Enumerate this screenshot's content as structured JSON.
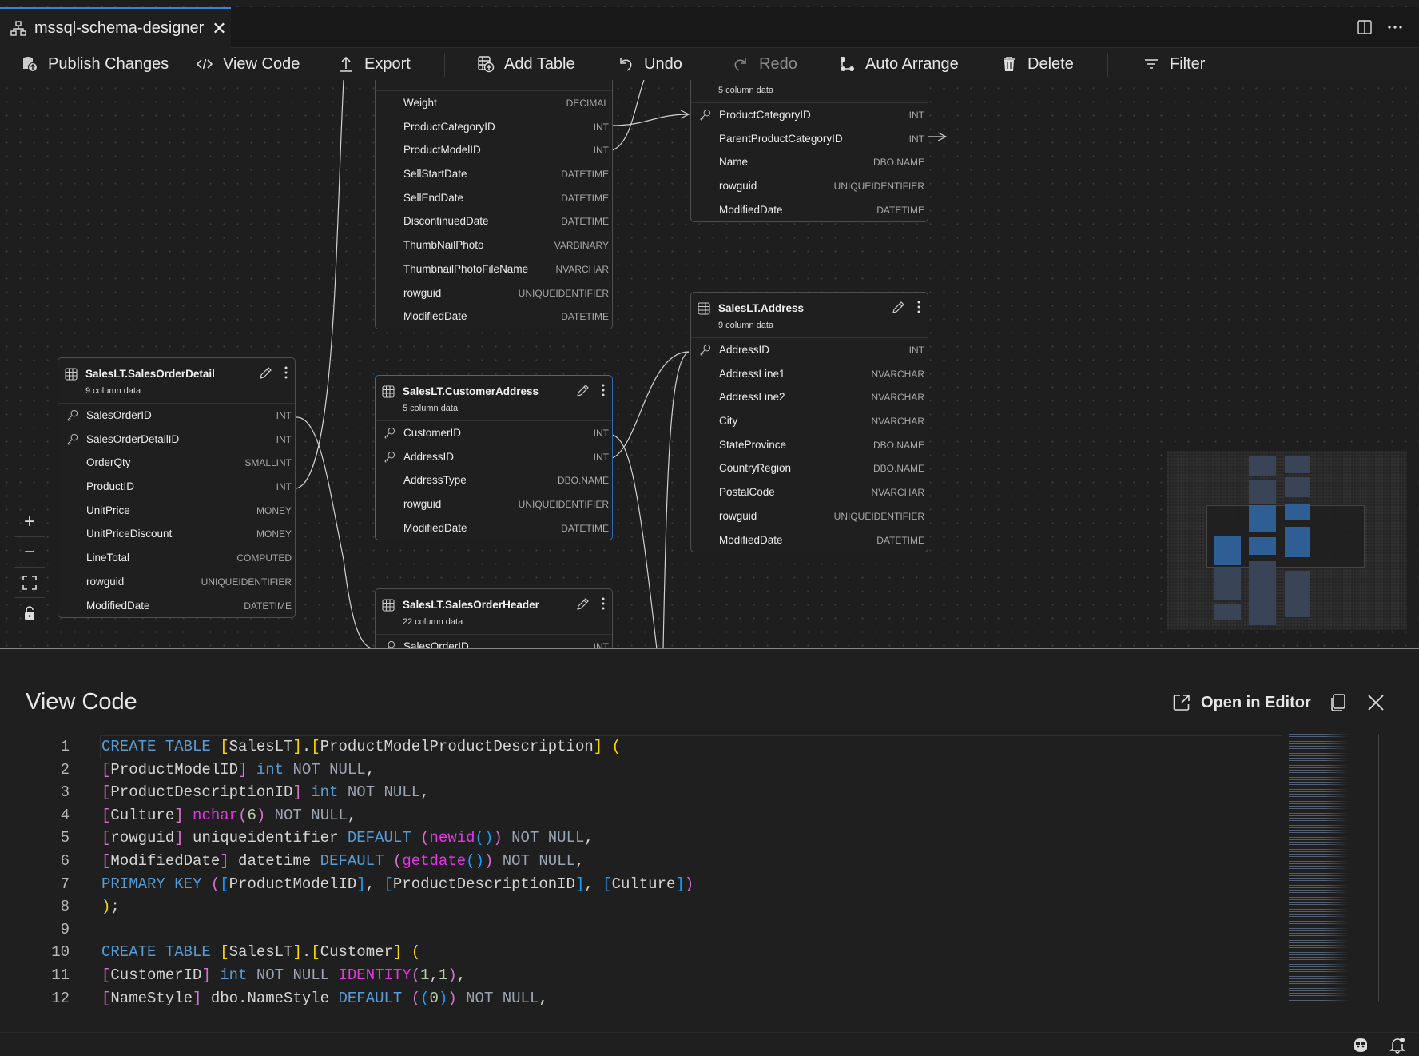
{
  "tab": {
    "title": "mssql-schema-designer",
    "icon": "schema-icon",
    "close": "✕"
  },
  "toolbar": {
    "publish": "Publish Changes",
    "view_code": "View Code",
    "export": "Export",
    "add_table": "Add Table",
    "undo": "Undo",
    "redo": "Redo",
    "auto_arrange": "Auto Arrange",
    "delete": "Delete",
    "filter": "Filter"
  },
  "tables": [
    {
      "title": "",
      "subtitle": "",
      "selected": false,
      "columns": [
        {
          "name": "Weight",
          "type": "DECIMAL"
        },
        {
          "name": "ProductCategoryID",
          "type": "INT"
        },
        {
          "name": "ProductModelID",
          "type": "INT"
        },
        {
          "name": "SellStartDate",
          "type": "DATETIME"
        },
        {
          "name": "SellEndDate",
          "type": "DATETIME"
        },
        {
          "name": "DiscontinuedDate",
          "type": "DATETIME"
        },
        {
          "name": "ThumbNailPhoto",
          "type": "VARBINARY"
        },
        {
          "name": "ThumbnailPhotoFileName",
          "type": "NVARCHAR"
        },
        {
          "name": "rowguid",
          "type": "UNIQUEIDENTIFIER"
        },
        {
          "name": "ModifiedDate",
          "type": "DATETIME"
        }
      ]
    },
    {
      "title": "",
      "subtitle": "5 column data",
      "selected": false,
      "columns": [
        {
          "name": "ProductCategoryID",
          "type": "INT",
          "key": true
        },
        {
          "name": "ParentProductCategoryID",
          "type": "INT"
        },
        {
          "name": "Name",
          "type": "DBO.NAME"
        },
        {
          "name": "rowguid",
          "type": "UNIQUEIDENTIFIER"
        },
        {
          "name": "ModifiedDate",
          "type": "DATETIME"
        }
      ]
    },
    {
      "title": "SalesLT.Address",
      "subtitle": "9 column data",
      "selected": false,
      "columns": [
        {
          "name": "AddressID",
          "type": "INT",
          "key": true
        },
        {
          "name": "AddressLine1",
          "type": "NVARCHAR"
        },
        {
          "name": "AddressLine2",
          "type": "NVARCHAR"
        },
        {
          "name": "City",
          "type": "NVARCHAR"
        },
        {
          "name": "StateProvince",
          "type": "DBO.NAME"
        },
        {
          "name": "CountryRegion",
          "type": "DBO.NAME"
        },
        {
          "name": "PostalCode",
          "type": "NVARCHAR"
        },
        {
          "name": "rowguid",
          "type": "UNIQUEIDENTIFIER"
        },
        {
          "name": "ModifiedDate",
          "type": "DATETIME"
        }
      ]
    },
    {
      "title": "SalesLT.SalesOrderDetail",
      "subtitle": "9 column data",
      "selected": false,
      "columns": [
        {
          "name": "SalesOrderID",
          "type": "INT",
          "key": true
        },
        {
          "name": "SalesOrderDetailID",
          "type": "INT",
          "key": true
        },
        {
          "name": "OrderQty",
          "type": "SMALLINT"
        },
        {
          "name": "ProductID",
          "type": "INT"
        },
        {
          "name": "UnitPrice",
          "type": "MONEY"
        },
        {
          "name": "UnitPriceDiscount",
          "type": "MONEY"
        },
        {
          "name": "LineTotal",
          "type": "COMPUTED"
        },
        {
          "name": "rowguid",
          "type": "UNIQUEIDENTIFIER"
        },
        {
          "name": "ModifiedDate",
          "type": "DATETIME"
        }
      ]
    },
    {
      "title": "SalesLT.CustomerAddress",
      "subtitle": "5 column data",
      "selected": true,
      "columns": [
        {
          "name": "CustomerID",
          "type": "INT",
          "key": true
        },
        {
          "name": "AddressID",
          "type": "INT",
          "key": true
        },
        {
          "name": "AddressType",
          "type": "DBO.NAME"
        },
        {
          "name": "rowguid",
          "type": "UNIQUEIDENTIFIER"
        },
        {
          "name": "ModifiedDate",
          "type": "DATETIME"
        }
      ]
    },
    {
      "title": "SalesLT.SalesOrderHeader",
      "subtitle": "22 column data",
      "selected": false,
      "columns": [
        {
          "name": "SalesOrderID",
          "type": "INT",
          "key": true
        }
      ]
    }
  ],
  "canvas_controls": {
    "zoom_in": "+",
    "zoom_out": "−"
  },
  "code_panel": {
    "title": "View Code",
    "open_in_editor": "Open in Editor",
    "lines": [
      [
        [
          "kw",
          "CREATE TABLE "
        ],
        [
          "b1",
          "["
        ],
        [
          "tx",
          "SalesLT"
        ],
        [
          "b1",
          "]"
        ],
        [
          "tx",
          "."
        ],
        [
          "b1",
          "["
        ],
        [
          "tx",
          "ProductModelProductDescription"
        ],
        [
          "b1",
          "]"
        ],
        [
          "tx",
          " "
        ],
        [
          "b1",
          "("
        ]
      ],
      [
        [
          "b2",
          "["
        ],
        [
          "tx",
          "ProductModelID"
        ],
        [
          "b2",
          "]"
        ],
        [
          "tx",
          " "
        ],
        [
          "kw",
          "int"
        ],
        [
          "nn",
          " NOT NULL"
        ],
        [
          "tx",
          ","
        ]
      ],
      [
        [
          "b2",
          "["
        ],
        [
          "tx",
          "ProductDescriptionID"
        ],
        [
          "b2",
          "]"
        ],
        [
          "tx",
          " "
        ],
        [
          "kw",
          "int"
        ],
        [
          "nn",
          " NOT NULL"
        ],
        [
          "tx",
          ","
        ]
      ],
      [
        [
          "b2",
          "["
        ],
        [
          "tx",
          "Culture"
        ],
        [
          "b2",
          "]"
        ],
        [
          "tx",
          " "
        ],
        [
          "fn",
          "nchar"
        ],
        [
          "b2",
          "("
        ],
        [
          "num",
          "6"
        ],
        [
          "b2",
          ")"
        ],
        [
          "nn",
          " NOT NULL"
        ],
        [
          "tx",
          ","
        ]
      ],
      [
        [
          "b2",
          "["
        ],
        [
          "tx",
          "rowguid"
        ],
        [
          "b2",
          "]"
        ],
        [
          "tx",
          " uniqueidentifier "
        ],
        [
          "kw",
          "DEFAULT"
        ],
        [
          "tx",
          " "
        ],
        [
          "b2",
          "("
        ],
        [
          "fn",
          "newid"
        ],
        [
          "b3",
          "()"
        ],
        [
          "b2",
          ")"
        ],
        [
          "nn",
          " NOT NULL"
        ],
        [
          "tx",
          ","
        ]
      ],
      [
        [
          "b2",
          "["
        ],
        [
          "tx",
          "ModifiedDate"
        ],
        [
          "b2",
          "]"
        ],
        [
          "tx",
          " datetime "
        ],
        [
          "kw",
          "DEFAULT"
        ],
        [
          "tx",
          " "
        ],
        [
          "b2",
          "("
        ],
        [
          "fn",
          "getdate"
        ],
        [
          "b3",
          "()"
        ],
        [
          "b2",
          ")"
        ],
        [
          "nn",
          " NOT NULL"
        ],
        [
          "tx",
          ","
        ]
      ],
      [
        [
          "kw",
          "PRIMARY KEY"
        ],
        [
          "tx",
          " "
        ],
        [
          "b2",
          "("
        ],
        [
          "b3",
          "["
        ],
        [
          "tx",
          "ProductModelID"
        ],
        [
          "b3",
          "]"
        ],
        [
          "tx",
          ", "
        ],
        [
          "b3",
          "["
        ],
        [
          "tx",
          "ProductDescriptionID"
        ],
        [
          "b3",
          "]"
        ],
        [
          "tx",
          ", "
        ],
        [
          "b3",
          "["
        ],
        [
          "tx",
          "Culture"
        ],
        [
          "b3",
          "]"
        ],
        [
          "b2",
          ")"
        ]
      ],
      [
        [
          "b1",
          ")"
        ],
        [
          "tx",
          ";"
        ]
      ],
      [],
      [
        [
          "kw",
          "CREATE TABLE "
        ],
        [
          "b1",
          "["
        ],
        [
          "tx",
          "SalesLT"
        ],
        [
          "b1",
          "]"
        ],
        [
          "tx",
          "."
        ],
        [
          "b1",
          "["
        ],
        [
          "tx",
          "Customer"
        ],
        [
          "b1",
          "]"
        ],
        [
          "tx",
          " "
        ],
        [
          "b1",
          "("
        ]
      ],
      [
        [
          "b2",
          "["
        ],
        [
          "tx",
          "CustomerID"
        ],
        [
          "b2",
          "]"
        ],
        [
          "tx",
          " "
        ],
        [
          "kw",
          "int"
        ],
        [
          "nn",
          " NOT NULL "
        ],
        [
          "fn",
          "IDENTITY"
        ],
        [
          "b2",
          "("
        ],
        [
          "num",
          "1"
        ],
        [
          "tx",
          ","
        ],
        [
          "num",
          "1"
        ],
        [
          "b2",
          ")"
        ],
        [
          "tx",
          ","
        ]
      ],
      [
        [
          "b2",
          "["
        ],
        [
          "tx",
          "NameStyle"
        ],
        [
          "b2",
          "]"
        ],
        [
          "tx",
          " dbo.NameStyle "
        ],
        [
          "kw",
          "DEFAULT"
        ],
        [
          "tx",
          " "
        ],
        [
          "b2",
          "("
        ],
        [
          "b3",
          "("
        ],
        [
          "num",
          "0"
        ],
        [
          "b3",
          ")"
        ],
        [
          "b2",
          ")"
        ],
        [
          "nn",
          " NOT NULL"
        ],
        [
          "tx",
          ","
        ]
      ]
    ]
  }
}
